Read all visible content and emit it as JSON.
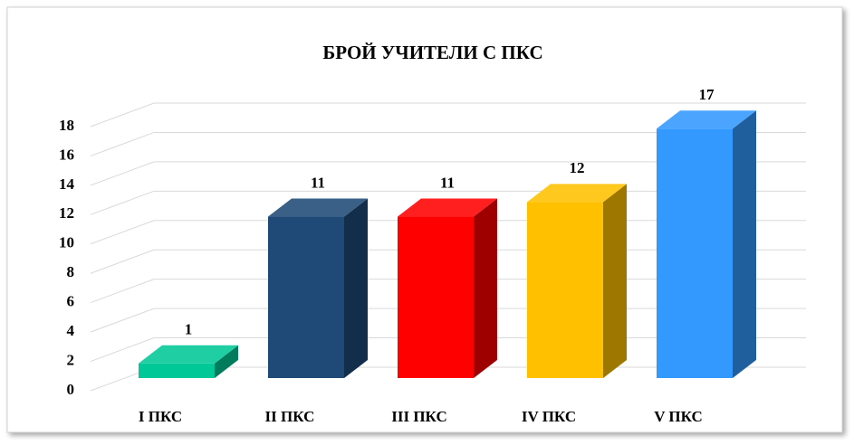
{
  "chart_data": {
    "type": "bar3d",
    "title": "БРОЙ УЧИТЕЛИ С ПКС",
    "categories": [
      "I ПКС",
      "II ПКС",
      "III  ПКС",
      "IV ПКС",
      "V ПКС"
    ],
    "values": [
      1,
      11,
      11,
      12,
      17
    ],
    "colors": [
      "#00c896",
      "#1f4a78",
      "#ff0000",
      "#ffc000",
      "#3399ff"
    ],
    "ylim": [
      0,
      18
    ],
    "yticks": [
      0,
      2,
      4,
      6,
      8,
      10,
      12,
      14,
      16,
      18
    ],
    "grid": true
  }
}
